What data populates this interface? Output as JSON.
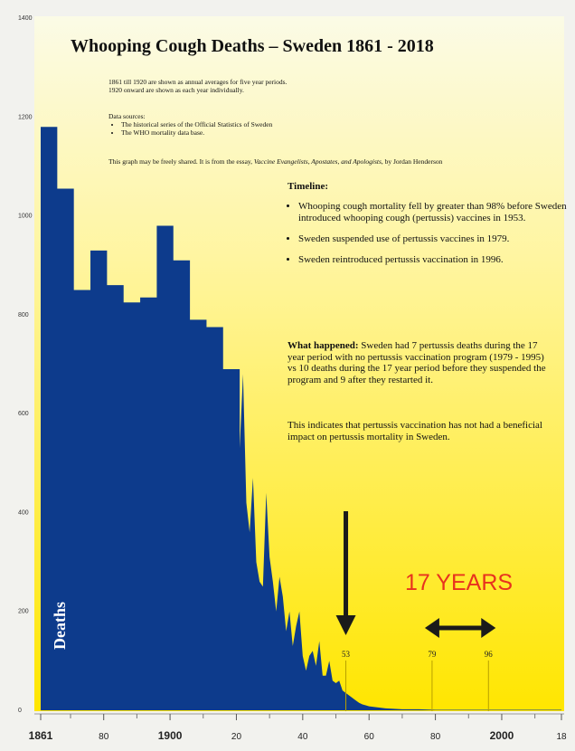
{
  "colors": {
    "area_fill": "#0d3b8c",
    "background_top": "#fbfbe6",
    "background_bottom": "#ffe600",
    "arrow": "#1a1a1a",
    "years_label": "#e8321e"
  },
  "text": {
    "title": "Whooping Cough Deaths – Sweden 1861 - 2018",
    "note_1": "1861 till 1920 are shown as annual averages for five year periods.",
    "note_2": "1920 onward are shown as each year individually.",
    "sources_heading": "Data sources:",
    "sources": [
      "The historical series of the Official Statistics of Sweden",
      "The WHO mortality data base."
    ],
    "share_prefix": "This graph may be freely shared. It is from the essay, ",
    "share_title": "Vaccine Evangelists, Apostates, and Apologists",
    "share_suffix": ", by Jordan Henderson",
    "timeline_heading": "Timeline:",
    "timeline_items": [
      "Whooping cough mortality fell by greater than 98% before Sweden introduced whooping cough (pertussis) vaccines in 1953.",
      "Sweden suspended use of pertussis vaccines in 1979.",
      "Sweden reintroduced pertussis vaccination in 1996."
    ],
    "what_happened_label": "What happened:",
    "what_happened_text": " Sweden had 7 pertussis deaths during the 17 year period with no pertussis vaccination program (1979 - 1995) vs 10 deaths during the 17 year period before they suspended the program and 9 after they restarted it.",
    "conclusion": "This indicates that pertussis vaccination has not had a beneficial impact on pertussis mortality in Sweden.",
    "years_label": "17 YEARS"
  },
  "chart_data": {
    "type": "area",
    "ylabel": "Deaths",
    "ylim": [
      0,
      1400
    ],
    "xlim": [
      1861,
      2018
    ],
    "y_ticks": [
      0,
      200,
      400,
      600,
      800,
      1000,
      1200,
      1400
    ],
    "x_tick_labels": [
      {
        "year": 1861,
        "label": "1861",
        "major": true
      },
      {
        "year": 1880,
        "label": "80",
        "major": false
      },
      {
        "year": 1900,
        "label": "1900",
        "major": true
      },
      {
        "year": 1920,
        "label": "20",
        "major": false
      },
      {
        "year": 1940,
        "label": "40",
        "major": false
      },
      {
        "year": 1960,
        "label": "60",
        "major": false
      },
      {
        "year": 1980,
        "label": "80",
        "major": false
      },
      {
        "year": 2000,
        "label": "2000",
        "major": true
      },
      {
        "year": 2018,
        "label": "18",
        "major": false
      }
    ],
    "x_minor_ticks": [
      1870,
      1890,
      1910,
      1930,
      1950,
      1970,
      1990,
      2010
    ],
    "periods_5yr": [
      {
        "start": 1861,
        "end": 1866,
        "value": 1180
      },
      {
        "start": 1866,
        "end": 1871,
        "value": 1055
      },
      {
        "start": 1871,
        "end": 1876,
        "value": 850
      },
      {
        "start": 1876,
        "end": 1881,
        "value": 930
      },
      {
        "start": 1881,
        "end": 1886,
        "value": 860
      },
      {
        "start": 1886,
        "end": 1891,
        "value": 825
      },
      {
        "start": 1891,
        "end": 1896,
        "value": 835
      },
      {
        "start": 1896,
        "end": 1901,
        "value": 980
      },
      {
        "start": 1901,
        "end": 1906,
        "value": 910
      },
      {
        "start": 1906,
        "end": 1911,
        "value": 790
      },
      {
        "start": 1911,
        "end": 1916,
        "value": 775
      },
      {
        "start": 1916,
        "end": 1921,
        "value": 690
      }
    ],
    "annual": {
      "years": [
        1921,
        1922,
        1923,
        1924,
        1925,
        1926,
        1927,
        1928,
        1929,
        1930,
        1931,
        1932,
        1933,
        1934,
        1935,
        1936,
        1937,
        1938,
        1939,
        1940,
        1941,
        1942,
        1943,
        1944,
        1945,
        1946,
        1947,
        1948,
        1949,
        1950,
        1951,
        1952,
        1953,
        1954,
        1955,
        1956,
        1957,
        1958,
        1959,
        1960,
        1965,
        1970,
        1975,
        1980,
        1985,
        1990,
        1995,
        2000,
        2005,
        2010,
        2018
      ],
      "values": [
        530,
        680,
        420,
        360,
        470,
        300,
        260,
        250,
        440,
        310,
        260,
        200,
        270,
        230,
        160,
        200,
        130,
        170,
        200,
        110,
        80,
        110,
        120,
        90,
        140,
        70,
        70,
        100,
        60,
        55,
        60,
        40,
        35,
        30,
        25,
        20,
        15,
        12,
        10,
        8,
        4,
        2,
        2,
        1,
        1,
        1,
        1,
        1,
        1,
        1,
        1
      ]
    },
    "annotations": [
      {
        "year": 1953,
        "label": "53"
      },
      {
        "year": 1979,
        "label": "79"
      },
      {
        "year": 1996,
        "label": "96"
      }
    ],
    "arrow_down_year": 1953,
    "range_arrow": {
      "from": 1979,
      "to": 1996
    }
  }
}
